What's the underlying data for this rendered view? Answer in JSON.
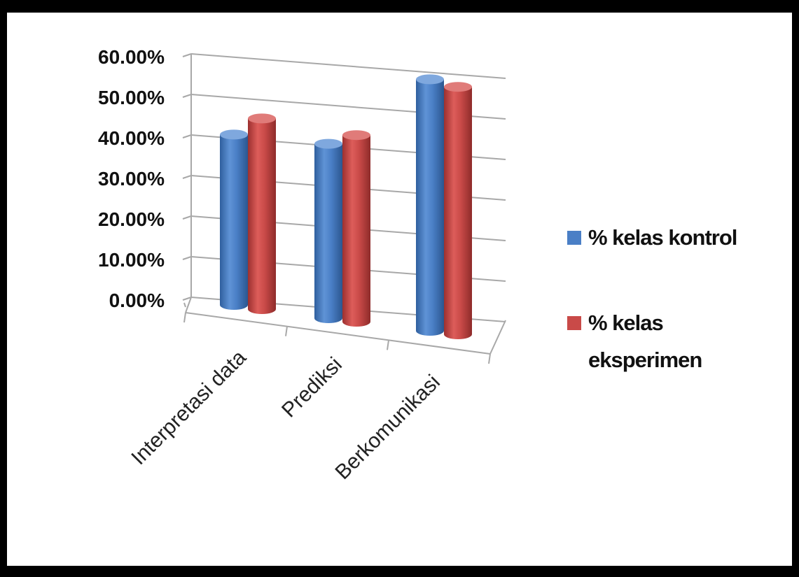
{
  "chart_data": {
    "type": "bar",
    "style": "3d-cylinder",
    "title": "",
    "xlabel": "",
    "ylabel": "",
    "ylim": [
      0,
      0.6
    ],
    "yticks": [
      "0.00%",
      "10.00%",
      "20.00%",
      "30.00%",
      "40.00%",
      "50.00%",
      "60.00%"
    ],
    "categories": [
      "Interpretasi data",
      "Prediksi",
      "Berkomunikasi"
    ],
    "series": [
      {
        "name": "% kelas kontrol",
        "color": "#4a7fc6",
        "values": [
          0.42,
          0.43,
          0.62
        ]
      },
      {
        "name": "% kelas eksperimen",
        "color": "#c94a48",
        "values": [
          0.47,
          0.46,
          0.61
        ]
      }
    ],
    "grid": true,
    "legend": {
      "position": "right",
      "lines": [
        [
          "% kelas kontrol"
        ],
        [
          "% kelas",
          "eksperimen"
        ]
      ]
    }
  }
}
